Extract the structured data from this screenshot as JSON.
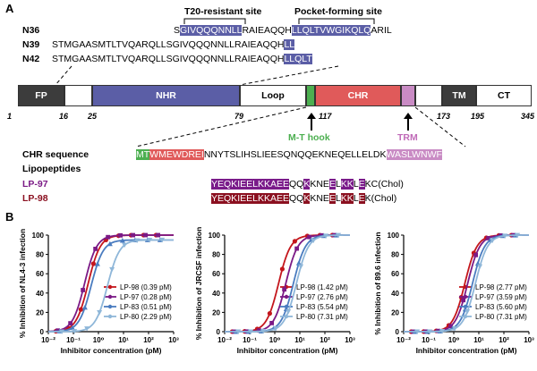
{
  "panel_a": {
    "letter": "A",
    "site_labels": {
      "t20": "T20-resistant site",
      "pocket": "Pocket-forming site"
    },
    "peptides": [
      {
        "name": "N36",
        "plain": "S",
        "hl": "GIVQQQNNLL",
        "mid": "RAIEAQQH",
        "hl2": "LLQLTVWGIKQLQ",
        "tail": "ARIL"
      },
      {
        "name": "N39",
        "plain": "STMGAASMTLTVQARQLLSGIVQQQNNLLRAIEAQQH",
        "hl2": "LL"
      },
      {
        "name": "N42",
        "plain": "STMGAASMTLTVQARQLLSGIVQQQNNLLRAIEAQQH",
        "hl2": "LLQLT"
      }
    ],
    "domains": {
      "fp": "FP",
      "nhr": "NHR",
      "loop": "Loop",
      "chr": "CHR",
      "tm": "TM",
      "ct": "CT"
    },
    "positions": [
      "1",
      "16",
      "25",
      "79",
      "117",
      "173",
      "195",
      "345"
    ],
    "mt_hook": "M-T hook",
    "trm": "TRM",
    "chr_sequence_label": "CHR sequence",
    "lipopeptides_label": "Lipopeptides",
    "chr_seq": {
      "mt": "MT",
      "red": "WMEWDREI",
      "mid": "NNYTSLIHSLIEESQNQQEKNEQELLELDK",
      "pink": "WASLWNWF"
    },
    "lp97": {
      "name": "LP-97",
      "s1": "YEQK",
      "s2": "IEE",
      "s3": "LKKAEE",
      "s4": "QQ",
      "s5": "K",
      "s6": "KNE",
      "s7": "E",
      "s8": "L",
      "s9": "KK",
      "s10": "L",
      "s11": "E",
      "tail": "KC(Chol)"
    },
    "lp98": {
      "name": "LP-98",
      "s1": "YEQK",
      "s2": "IEE",
      "s3": "LKKAEE",
      "s4": "QQ",
      "s5": "K",
      "s6": "KNE",
      "s7": "E",
      "s8": "L",
      "s9": "KK",
      "s10": "L",
      "s11": "E",
      "tail": "K(Chol)"
    }
  },
  "panel_b": {
    "letter": "B"
  },
  "colors": {
    "lp98": "#c4161c",
    "lp97": "#7b1a86",
    "lp83": "#4a7cc0",
    "lp80": "#8fb7d9",
    "nhr": "#5b5ea6",
    "chr": "#e05a5a"
  },
  "chart_data": [
    {
      "type": "line",
      "ylabel": "% Inhibition of NL4-3 infection",
      "xlabel": "Inhibitor concentration (pM)",
      "x_scale": "log",
      "x_ticks": [
        "10⁻²",
        "10⁻¹",
        "10⁰",
        "10¹",
        "10²",
        "10³"
      ],
      "y_ticks": [
        "0",
        "20",
        "40",
        "60",
        "80",
        "100"
      ],
      "ylim": [
        0,
        100
      ],
      "series": [
        {
          "name": "LP-98 (0.39 pM)",
          "ic50": 0.39,
          "top": 100
        },
        {
          "name": "LP-97 (0.28 pM)",
          "ic50": 0.28,
          "top": 100
        },
        {
          "name": "LP-83 (0.51 pM)",
          "ic50": 0.51,
          "top": 95
        },
        {
          "name": "LP-80 (2.29 pM)",
          "ic50": 2.29,
          "top": 95
        }
      ]
    },
    {
      "type": "line",
      "ylabel": "% Inhibition of JRCSF infection",
      "xlabel": "Inhibitor concentration (pM)",
      "x_scale": "log",
      "x_ticks": [
        "10⁻²",
        "10⁻¹",
        "10⁰",
        "10¹",
        "10²",
        "10³"
      ],
      "y_ticks": [
        "0",
        "20",
        "40",
        "60",
        "80",
        "100"
      ],
      "ylim": [
        0,
        100
      ],
      "series": [
        {
          "name": "LP-98 (1.42 pM)",
          "ic50": 1.42,
          "top": 100
        },
        {
          "name": "LP-97 (2.76 pM)",
          "ic50": 2.76,
          "top": 100
        },
        {
          "name": "LP-83 (5.54 pM)",
          "ic50": 5.54,
          "top": 100
        },
        {
          "name": "LP-80 (7.31 pM)",
          "ic50": 7.31,
          "top": 100
        }
      ]
    },
    {
      "type": "line",
      "ylabel": "% Inhibition of 89.6 infection",
      "xlabel": "Inhibitor concentration (pM)",
      "x_scale": "log",
      "x_ticks": [
        "10⁻²",
        "10⁻¹",
        "10⁰",
        "10¹",
        "10²",
        "10³"
      ],
      "y_ticks": [
        "0",
        "20",
        "40",
        "60",
        "80",
        "100"
      ],
      "ylim": [
        0,
        100
      ],
      "series": [
        {
          "name": "LP-98 (2.77 pM)",
          "ic50": 2.77,
          "top": 100
        },
        {
          "name": "LP-97 (3.59 pM)",
          "ic50": 3.59,
          "top": 100
        },
        {
          "name": "LP-83 (5.60 pM)",
          "ic50": 5.6,
          "top": 100
        },
        {
          "name": "LP-80 (7.31 pM)",
          "ic50": 7.31,
          "top": 100
        }
      ]
    }
  ]
}
